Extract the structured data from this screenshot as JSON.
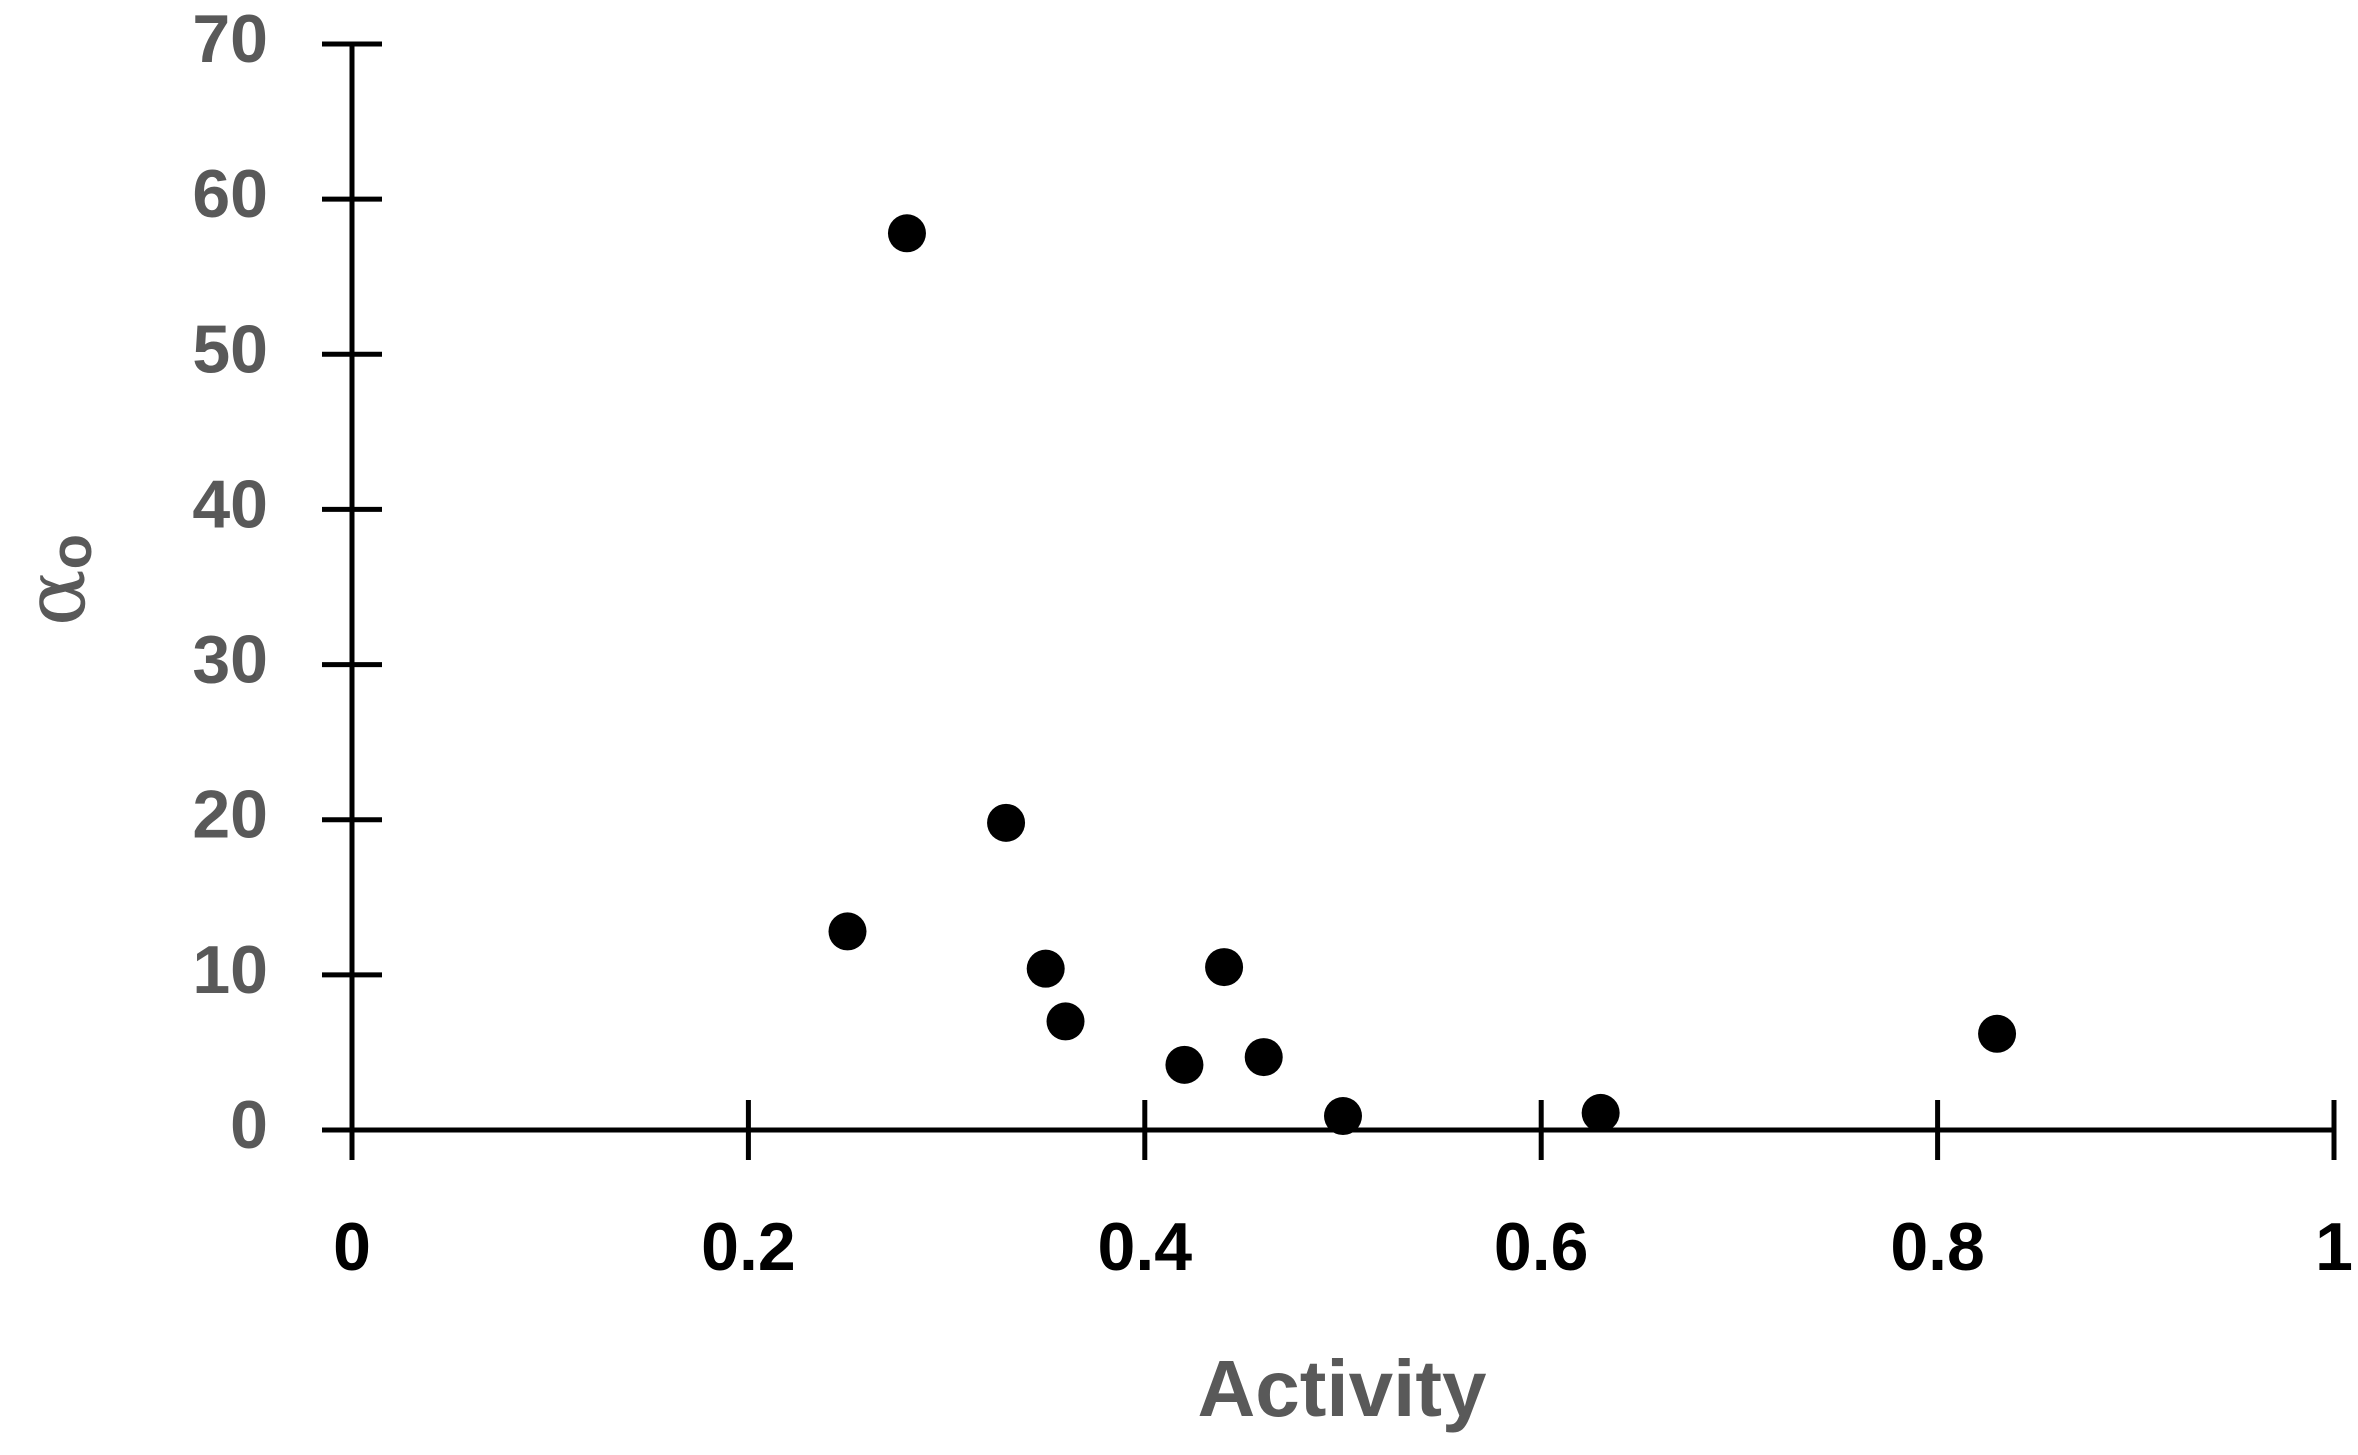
{
  "colors": {
    "axis": "#000000",
    "point": "#000000",
    "ytick_text": "#595959",
    "xtick_text": "#000000",
    "axis_title": "#595959"
  },
  "chart_data": {
    "type": "scatter",
    "title": "",
    "xlabel": "Activity",
    "ylabel": "α",
    "ylabel_subscript": "o",
    "xlim": [
      0,
      1
    ],
    "ylim": [
      0,
      70
    ],
    "xticks": [
      0,
      0.2,
      0.4,
      0.6,
      0.8,
      1
    ],
    "xtick_labels": [
      "0",
      "0.2",
      "0.4",
      "0.6",
      "0.8",
      "1"
    ],
    "yticks": [
      0,
      10,
      20,
      30,
      40,
      50,
      60,
      70
    ],
    "ytick_labels": [
      "0",
      "10",
      "20",
      "30",
      "40",
      "50",
      "60",
      "70"
    ],
    "grid": false,
    "legend": "none",
    "series": [
      {
        "x": [
          0.25,
          0.28,
          0.33,
          0.35,
          0.36,
          0.42,
          0.44,
          0.46,
          0.5,
          0.63,
          0.83
        ],
        "y": [
          12.8,
          57.8,
          19.8,
          10.4,
          7.0,
          4.2,
          10.5,
          4.7,
          0.9,
          1.1,
          6.2
        ]
      }
    ]
  }
}
